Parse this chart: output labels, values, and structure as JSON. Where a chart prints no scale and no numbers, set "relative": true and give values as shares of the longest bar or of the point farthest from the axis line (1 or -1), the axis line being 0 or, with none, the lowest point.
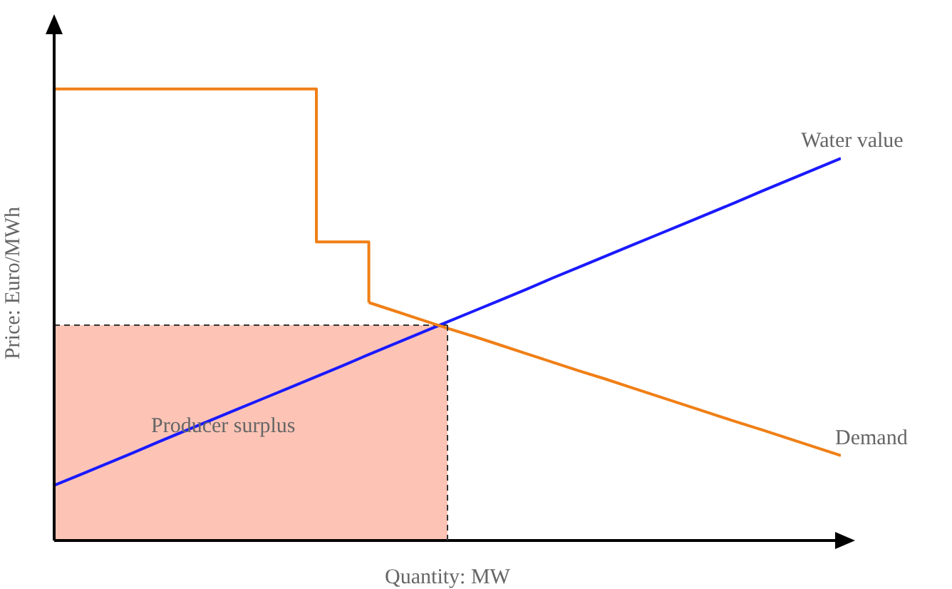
{
  "chart_data": {
    "type": "line",
    "relative": true,
    "xlabel": "Quantity: MW",
    "ylabel": "Price: Euro/MWh",
    "marker": "none",
    "categories": [
      null,
      null,
      null,
      null,
      null,
      null,
      null,
      null,
      null,
      null,
      null,
      null,
      null,
      null,
      null,
      null,
      null,
      null,
      null,
      null,
      null,
      null,
      null,
      null,
      null,
      null,
      null,
      null,
      null,
      null,
      null
    ],
    "series": [
      {
        "name": "Producer surplus",
        "type": "area",
        "color": "#fdc4b6",
        "line_style": "dashed",
        "values": [
          0.477,
          0.477,
          0.477,
          0.477,
          0.477,
          0.477,
          0.477,
          0.477,
          0.477,
          0.477,
          0.477,
          0.477,
          0.477,
          0.477,
          0.477,
          0.477,
          null,
          null,
          null,
          null,
          null,
          null,
          null,
          null,
          null,
          null,
          null,
          null,
          null,
          null,
          null
        ]
      },
      {
        "name": "Water value",
        "color": "#1a1aff",
        "values": [
          0.122,
          0.146,
          0.17,
          0.194,
          0.219,
          0.243,
          0.267,
          0.291,
          0.315,
          0.339,
          0.363,
          0.387,
          0.412,
          0.436,
          0.46,
          0.484,
          0.508,
          0.532,
          0.556,
          0.581,
          0.605,
          0.629,
          0.653,
          0.677,
          0.701,
          0.725,
          0.749,
          0.774,
          0.798,
          0.822,
          0.846
        ]
      },
      {
        "type": "step",
        "color": "#f07f16",
        "values": [
          1,
          1,
          1,
          1,
          1,
          1,
          1,
          1,
          1,
          1,
          0.661,
          0.661,
          0.527,
          null,
          null,
          null,
          null,
          null,
          null,
          null,
          null,
          null,
          null,
          null,
          null,
          null,
          null,
          null,
          null,
          null,
          null
        ]
      },
      {
        "name": "Demand",
        "color": "#f07f16",
        "values": [
          null,
          null,
          null,
          null,
          null,
          null,
          null,
          null,
          null,
          null,
          null,
          null,
          0.527,
          0.508,
          0.489,
          0.47,
          0.452,
          0.433,
          0.414,
          0.395,
          0.376,
          0.358,
          0.339,
          0.32,
          0.301,
          0.282,
          0.263,
          0.245,
          0.226,
          0.207,
          0.188
        ]
      }
    ]
  }
}
